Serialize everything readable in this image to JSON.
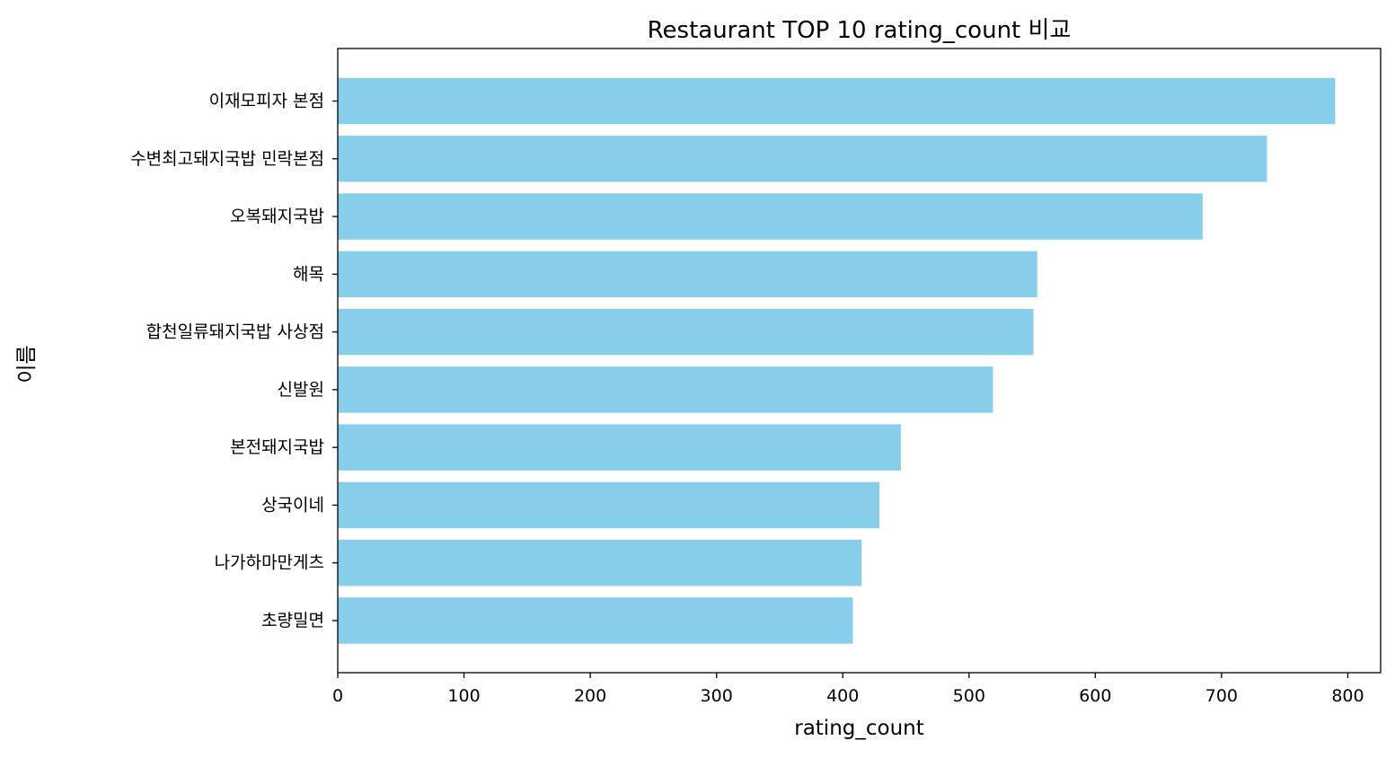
{
  "chart_data": {
    "type": "bar",
    "orientation": "horizontal",
    "title": "Restaurant TOP 10 rating_count 비교",
    "xlabel": "rating_count",
    "ylabel": "이름",
    "categories": [
      "이재모피자 본점",
      "수변최고돼지국밥 민락본점",
      "오복돼지국밥",
      "해목",
      "합천일류돼지국밥 사상점",
      "신발원",
      "본전돼지국밥",
      "상국이네",
      "나가하마만게츠",
      "초량밀면"
    ],
    "values": [
      790,
      736,
      685,
      554,
      551,
      519,
      446,
      429,
      415,
      408
    ],
    "xlim": [
      0,
      826
    ],
    "xticks": [
      "0",
      "100",
      "200",
      "300",
      "400",
      "500",
      "600",
      "700",
      "800"
    ],
    "grid": false,
    "bar_color": "#87ceeb",
    "axis_color": "#000000"
  }
}
